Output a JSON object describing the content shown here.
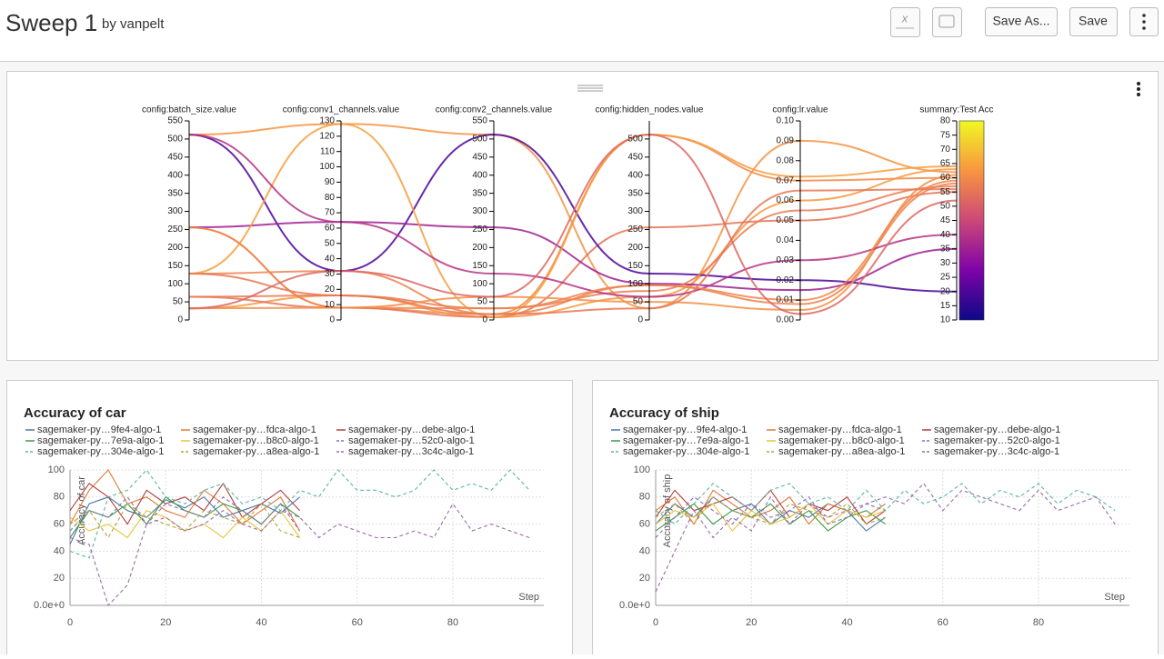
{
  "header": {
    "title": "Sweep 1",
    "subtitle": "by vanpelt",
    "buttons": [
      "Save As...",
      "Save"
    ]
  },
  "chart_data": [
    {
      "type": "parallel",
      "axes": [
        {
          "label": "config:batch_size.value",
          "ylim": [
            0,
            550
          ],
          "yticks": [
            0,
            50,
            100,
            150,
            200,
            250,
            300,
            350,
            400,
            450,
            500,
            550
          ]
        },
        {
          "label": "config:conv1_channels.value",
          "ylim": [
            0,
            130
          ],
          "yticks": [
            0,
            10,
            20,
            30,
            40,
            50,
            60,
            70,
            80,
            90,
            100,
            110,
            120,
            130
          ]
        },
        {
          "label": "config:conv2_channels.value",
          "ylim": [
            0,
            550
          ],
          "yticks": [
            0,
            50,
            100,
            150,
            200,
            250,
            300,
            350,
            400,
            450,
            500,
            550
          ]
        },
        {
          "label": "config:hidden_nodes.value",
          "ylim": [
            0,
            550
          ],
          "yticks": [
            0,
            50,
            100,
            150,
            200,
            250,
            300,
            350,
            400,
            450,
            500
          ]
        },
        {
          "label": "config:lr.value",
          "ylim": [
            0,
            0.1
          ],
          "yticks": [
            {
              "value": 0,
              "label": "0.00"
            },
            {
              "value": 0.01,
              "label": "0.01"
            },
            {
              "value": 0.02,
              "label": "0.02"
            },
            {
              "value": 0.03,
              "label": "0.03"
            },
            {
              "value": 0.04,
              "label": "0.04"
            },
            {
              "value": 0.05,
              "label": "0.05"
            },
            {
              "value": 0.06,
              "label": "0.06"
            },
            {
              "value": 0.07,
              "label": "0.07"
            },
            {
              "value": 0.08,
              "label": "0.08"
            },
            {
              "value": 0.09,
              "label": "0.09"
            },
            {
              "value": 0.1,
              "label": "0.10"
            }
          ]
        },
        {
          "label": "summary:Test Acc",
          "ylim": [
            10,
            80
          ],
          "yticks": [
            10,
            15,
            20,
            25,
            30,
            35,
            40,
            45,
            50,
            55,
            60,
            65,
            70,
            75,
            80
          ]
        }
      ],
      "colorscale": [
        "#0d0887",
        "#7e03a8",
        "#cc4778",
        "#f89540",
        "#f0f921"
      ],
      "runs": [
        [
          512,
          128,
          512,
          32,
          0.09,
          62
        ],
        [
          256,
          8,
          16,
          512,
          0.07,
          60
        ],
        [
          32,
          16,
          8,
          64,
          0.06,
          63
        ],
        [
          64,
          8,
          8,
          256,
          0.05,
          55
        ],
        [
          128,
          32,
          16,
          96,
          0.008,
          58
        ],
        [
          512,
          32,
          512,
          128,
          0.02,
          20
        ],
        [
          256,
          64,
          256,
          100,
          0.015,
          35
        ],
        [
          64,
          16,
          32,
          80,
          0.055,
          57
        ],
        [
          32,
          8,
          64,
          50,
          0.005,
          61
        ],
        [
          128,
          128,
          8,
          512,
          0.072,
          64
        ],
        [
          512,
          64,
          128,
          64,
          0.03,
          40
        ],
        [
          256,
          8,
          32,
          96,
          0.01,
          59
        ],
        [
          128,
          16,
          16,
          32,
          0.065,
          56
        ],
        [
          32,
          32,
          64,
          512,
          0.003,
          52
        ]
      ]
    },
    {
      "type": "line",
      "title": "Accuracy of car",
      "ylabel": "Accuracy of car",
      "xlabel": "Step",
      "grid": true,
      "x": [
        0,
        4,
        8,
        12,
        16,
        20,
        24,
        28,
        32,
        36,
        40,
        44,
        48,
        52,
        56,
        60,
        64,
        68,
        72,
        76,
        80,
        84,
        88,
        92,
        96
      ],
      "xlim": [
        0,
        99
      ],
      "xticks": [
        0,
        20,
        40,
        60,
        80
      ],
      "ylim": [
        0,
        100
      ],
      "yticks": [
        {
          "value": 0,
          "label": "0.0e+0"
        },
        20,
        40,
        60,
        80,
        100
      ],
      "series": [
        {
          "name": "sagemaker-py…9fe4-algo-1",
          "color": "#4e79a7",
          "dash": false,
          "values": [
            45,
            75,
            80,
            70,
            65,
            78,
            72,
            80,
            65,
            70,
            75,
            68,
            80,
            null,
            null,
            null,
            null,
            null,
            null,
            null,
            null,
            null,
            null,
            null,
            null
          ]
        },
        {
          "name": "sagemaker-py…fdca-algo-1",
          "color": "#e07b39",
          "dash": false,
          "values": [
            60,
            85,
            100,
            75,
            80,
            70,
            65,
            85,
            75,
            60,
            70,
            80,
            55,
            null,
            null,
            null,
            null,
            null,
            null,
            null,
            null,
            null,
            null,
            null,
            null
          ]
        },
        {
          "name": "sagemaker-py…debe-algo-1",
          "color": "#b0413e",
          "dash": false,
          "values": [
            70,
            90,
            80,
            60,
            85,
            75,
            80,
            70,
            90,
            65,
            75,
            85,
            70,
            null,
            null,
            null,
            null,
            null,
            null,
            null,
            null,
            null,
            null,
            null,
            null
          ]
        },
        {
          "name": "sagemaker-py…7e9a-algo-1",
          "color": "#3a9a48",
          "dash": false,
          "values": [
            50,
            70,
            65,
            75,
            60,
            80,
            70,
            65,
            75,
            70,
            60,
            75,
            65,
            null,
            null,
            null,
            null,
            null,
            null,
            null,
            null,
            null,
            null,
            null,
            null
          ]
        },
        {
          "name": "sagemaker-py…b8c0-algo-1",
          "color": "#e8c43a",
          "dash": false,
          "values": [
            65,
            55,
            60,
            50,
            70,
            65,
            55,
            60,
            50,
            65,
            55,
            70,
            50,
            null,
            null,
            null,
            null,
            null,
            null,
            null,
            null,
            null,
            null,
            null,
            null
          ]
        },
        {
          "name": "sagemaker-py…52c0-algo-1",
          "color": "#8b6bb1",
          "dash": true,
          "values": [
            55,
            70,
            65,
            80,
            60,
            75,
            70,
            65,
            80,
            70,
            60,
            75,
            55,
            null,
            null,
            null,
            null,
            null,
            null,
            null,
            null,
            null,
            null,
            null,
            null
          ]
        },
        {
          "name": "sagemaker-py…304e-algo-1",
          "color": "#5bb5a2",
          "dash": true,
          "values": [
            40,
            35,
            80,
            85,
            100,
            80,
            75,
            85,
            90,
            75,
            80,
            70,
            85,
            80,
            100,
            85,
            85,
            80,
            85,
            100,
            85,
            90,
            85,
            100,
            85
          ]
        },
        {
          "name": "sagemaker-py…a8ea-algo-1",
          "color": "#b5a33a",
          "dash": true,
          "values": [
            60,
            70,
            50,
            75,
            65,
            60,
            55,
            70,
            65,
            60,
            75,
            55,
            50,
            null,
            null,
            null,
            null,
            null,
            null,
            null,
            null,
            null,
            null,
            null,
            null
          ]
        },
        {
          "name": "sagemaker-py…3c4c-algo-1",
          "color": "#9d6ba8",
          "dash": true,
          "values": [
            50,
            45,
            0,
            15,
            60,
            65,
            55,
            60,
            70,
            60,
            55,
            70,
            65,
            50,
            60,
            55,
            50,
            50,
            55,
            50,
            75,
            55,
            60,
            55,
            50
          ]
        }
      ]
    },
    {
      "type": "line",
      "title": "Accuracy of ship",
      "ylabel": "Accuracy of ship",
      "xlabel": "Step",
      "grid": true,
      "x": [
        0,
        4,
        8,
        12,
        16,
        20,
        24,
        28,
        32,
        36,
        40,
        44,
        48,
        52,
        56,
        60,
        64,
        68,
        72,
        76,
        80,
        84,
        88,
        92,
        96
      ],
      "xlim": [
        0,
        99
      ],
      "xticks": [
        0,
        20,
        40,
        60,
        80
      ],
      "ylim": [
        0,
        100
      ],
      "yticks": [
        {
          "value": 0,
          "label": "0.0e+0"
        },
        20,
        40,
        60,
        80,
        100
      ],
      "series": [
        {
          "name": "sagemaker-py…9fe4-algo-1",
          "color": "#4e79a7",
          "dash": false,
          "values": [
            60,
            75,
            65,
            80,
            70,
            75,
            60,
            70,
            65,
            75,
            70,
            55,
            65,
            null,
            null,
            null,
            null,
            null,
            null,
            null,
            null,
            null,
            null,
            null,
            null
          ]
        },
        {
          "name": "sagemaker-py…fdca-algo-1",
          "color": "#e07b39",
          "dash": false,
          "values": [
            70,
            80,
            60,
            85,
            75,
            65,
            70,
            80,
            60,
            75,
            70,
            65,
            75,
            null,
            null,
            null,
            null,
            null,
            null,
            null,
            null,
            null,
            null,
            null,
            null
          ]
        },
        {
          "name": "sagemaker-py…debe-algo-1",
          "color": "#b0413e",
          "dash": false,
          "values": [
            65,
            85,
            70,
            75,
            80,
            70,
            85,
            65,
            75,
            70,
            80,
            60,
            70,
            null,
            null,
            null,
            null,
            null,
            null,
            null,
            null,
            null,
            null,
            null,
            null
          ]
        },
        {
          "name": "sagemaker-py…7e9a-algo-1",
          "color": "#3a9a48",
          "dash": false,
          "values": [
            55,
            65,
            75,
            60,
            70,
            65,
            75,
            60,
            70,
            55,
            65,
            70,
            60,
            null,
            null,
            null,
            null,
            null,
            null,
            null,
            null,
            null,
            null,
            null,
            null
          ]
        },
        {
          "name": "sagemaker-py…b8c0-algo-1",
          "color": "#e8c43a",
          "dash": false,
          "values": [
            60,
            70,
            65,
            75,
            55,
            70,
            60,
            65,
            75,
            60,
            70,
            65,
            70,
            null,
            null,
            null,
            null,
            null,
            null,
            null,
            null,
            null,
            null,
            null,
            null
          ]
        },
        {
          "name": "sagemaker-py…52c0-algo-1",
          "color": "#8b6bb1",
          "dash": true,
          "values": [
            50,
            65,
            80,
            70,
            60,
            75,
            65,
            70,
            80,
            60,
            65,
            75,
            70,
            null,
            null,
            null,
            null,
            null,
            null,
            null,
            null,
            null,
            null,
            null,
            null
          ]
        },
        {
          "name": "sagemaker-py…304e-algo-1",
          "color": "#5bb5a2",
          "dash": true,
          "values": [
            70,
            60,
            75,
            90,
            80,
            70,
            85,
            90,
            75,
            80,
            70,
            85,
            70,
            85,
            75,
            80,
            90,
            75,
            85,
            80,
            90,
            75,
            85,
            80,
            70
          ]
        },
        {
          "name": "sagemaker-py…a8ea-algo-1",
          "color": "#b5a33a",
          "dash": true,
          "values": [
            65,
            75,
            60,
            80,
            70,
            65,
            60,
            75,
            70,
            65,
            75,
            60,
            65,
            null,
            null,
            null,
            null,
            null,
            null,
            null,
            null,
            null,
            null,
            null,
            null
          ]
        },
        {
          "name": "sagemaker-py…3c4c-algo-1",
          "color": "#9d6ba8",
          "dash": true,
          "values": [
            10,
            40,
            70,
            50,
            65,
            55,
            80,
            60,
            75,
            65,
            70,
            75,
            80,
            75,
            90,
            70,
            85,
            80,
            75,
            70,
            85,
            70,
            75,
            80,
            60
          ]
        }
      ]
    }
  ]
}
